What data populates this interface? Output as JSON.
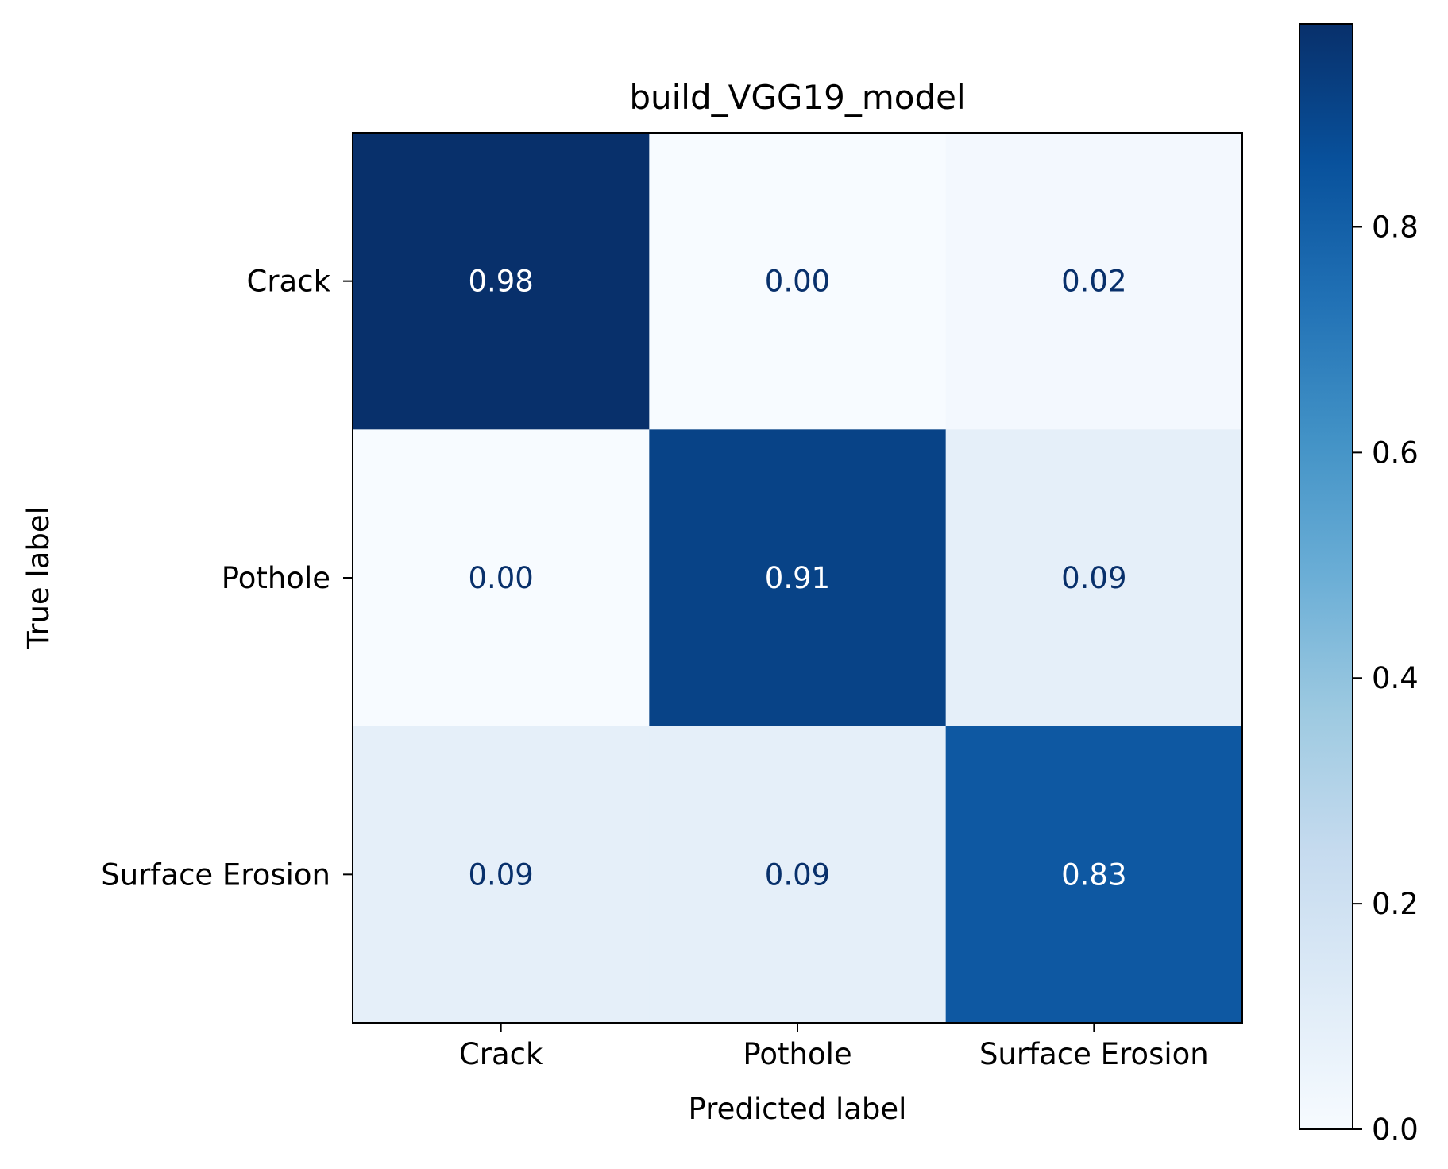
{
  "chart_data": {
    "type": "heatmap",
    "title": "build_VGG19_model",
    "xlabel": "Predicted label",
    "ylabel": "True label",
    "x_categories": [
      "Crack",
      "Pothole",
      "Surface Erosion"
    ],
    "y_categories": [
      "Crack",
      "Pothole",
      "Surface Erosion"
    ],
    "values": [
      [
        0.98,
        0.0,
        0.02
      ],
      [
        0.0,
        0.91,
        0.09
      ],
      [
        0.09,
        0.09,
        0.83
      ]
    ],
    "cell_labels": [
      [
        "0.98",
        "0.00",
        "0.02"
      ],
      [
        "0.00",
        "0.91",
        "0.09"
      ],
      [
        "0.09",
        "0.09",
        "0.83"
      ]
    ],
    "colormap": "Blues",
    "colorbar": {
      "range": [
        0.0,
        0.98
      ],
      "ticks": [
        0.0,
        0.2,
        0.4,
        0.6,
        0.8
      ],
      "tick_labels": [
        "0.0",
        "0.2",
        "0.4",
        "0.6",
        "0.8"
      ]
    },
    "grid": false,
    "legend": "colorbar-right"
  }
}
